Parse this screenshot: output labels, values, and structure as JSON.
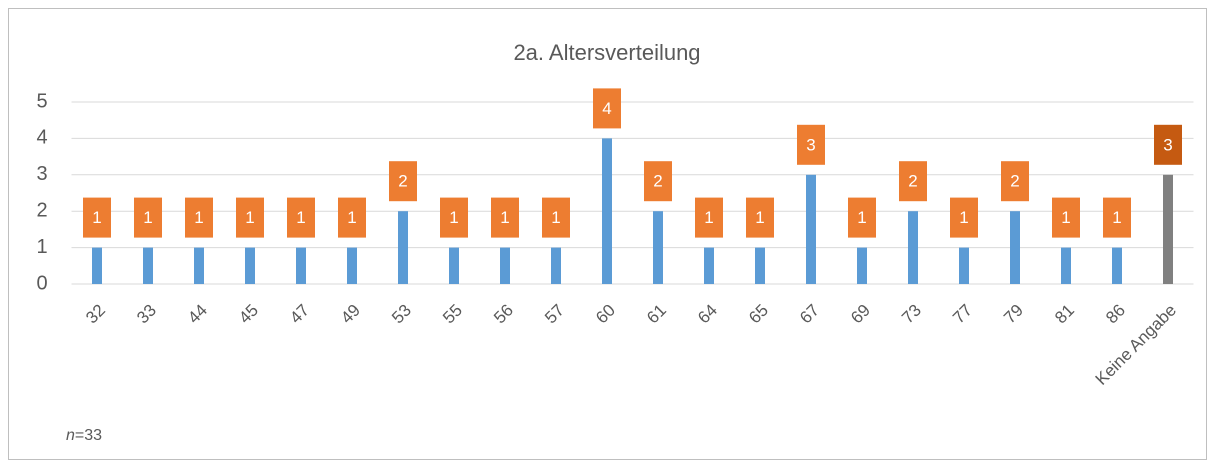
{
  "chart_data": {
    "type": "bar",
    "title": "2a. Altersverteilung",
    "categories": [
      "32",
      "33",
      "44",
      "45",
      "47",
      "49",
      "53",
      "55",
      "56",
      "57",
      "60",
      "61",
      "64",
      "65",
      "67",
      "69",
      "73",
      "77",
      "79",
      "81",
      "86",
      "Keine Angabe"
    ],
    "values": [
      1,
      1,
      1,
      1,
      1,
      1,
      2,
      1,
      1,
      1,
      4,
      2,
      1,
      1,
      3,
      1,
      2,
      1,
      2,
      1,
      1,
      3
    ],
    "colors": [
      "#5b9bd5",
      "#5b9bd5",
      "#5b9bd5",
      "#5b9bd5",
      "#5b9bd5",
      "#5b9bd5",
      "#5b9bd5",
      "#5b9bd5",
      "#5b9bd5",
      "#5b9bd5",
      "#5b9bd5",
      "#5b9bd5",
      "#5b9bd5",
      "#5b9bd5",
      "#5b9bd5",
      "#5b9bd5",
      "#5b9bd5",
      "#5b9bd5",
      "#5b9bd5",
      "#5b9bd5",
      "#5b9bd5",
      "#808080"
    ],
    "label_colors": [
      "#ed7d31",
      "#ed7d31",
      "#ed7d31",
      "#ed7d31",
      "#ed7d31",
      "#ed7d31",
      "#ed7d31",
      "#ed7d31",
      "#ed7d31",
      "#ed7d31",
      "#ed7d31",
      "#ed7d31",
      "#ed7d31",
      "#ed7d31",
      "#ed7d31",
      "#ed7d31",
      "#ed7d31",
      "#ed7d31",
      "#ed7d31",
      "#ed7d31",
      "#ed7d31",
      "#c55a11"
    ],
    "ylim": [
      0,
      5
    ],
    "yticks": [
      0,
      1,
      2,
      3,
      4,
      5
    ],
    "grid": true,
    "annotation": {
      "variable": "n",
      "text": "=33"
    }
  }
}
